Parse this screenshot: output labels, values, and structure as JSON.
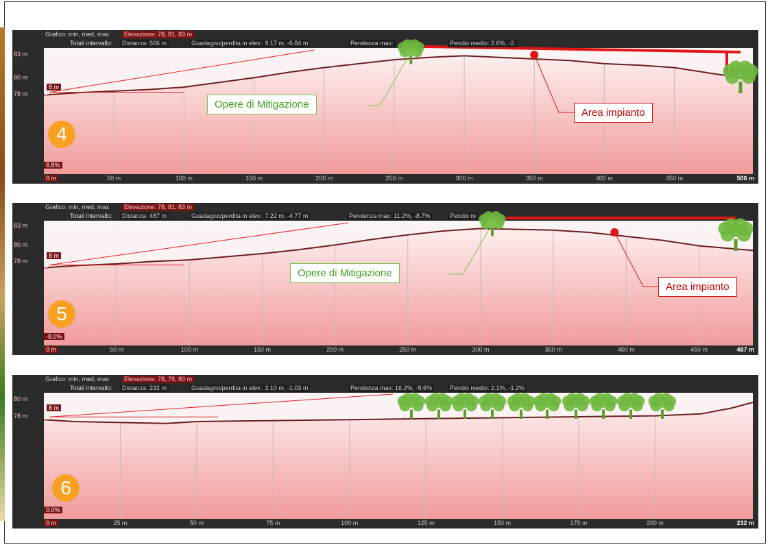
{
  "colors": {
    "panel_bg": "#2b2b2b",
    "profile_line": "#6b1e1e",
    "fill_top": "#fff4f4",
    "fill_bottom": "#f19b9b",
    "green": "#7bc24a",
    "red": "#e01515",
    "badge": "#f7a021"
  },
  "header": {
    "chart_label": "Grafico: min, med, max",
    "totals_label": "Totali intervallo:"
  },
  "charts": [
    {
      "badge": "4",
      "elevation": "Elevazione: 78, 81, 83 m",
      "distance": "Distanza: 506 m",
      "gain_loss": "Guadagno/perdita in elev.: 9.17 m, -6.84 m",
      "slope_max": "Pendenza max:",
      "slope_mean": "Pendio medio: 2.6%, -2.",
      "y_ticks": [
        "83 m",
        "80 m",
        "78 m"
      ],
      "x_ticks": [
        "50 m",
        "100 m",
        "150 m",
        "200 m",
        "250 m",
        "300 m",
        "350 m",
        "400 m",
        "450 m"
      ],
      "x_start": "0 m",
      "x_end": "506 m",
      "cursor_slope": "6.8%",
      "cursor_elev": "8 m",
      "green_label": "Opere di Mitigazione",
      "red_label": "Area impianto",
      "trees_icon": "tree-icon"
    },
    {
      "badge": "5",
      "elevation": "Elevazione: 78, 81, 83 m",
      "distance": "Distanza: 487 m",
      "gain_loss": "Guadagno/perdita in elev.: 7.22 m, -4.77 m",
      "slope_max": "Pendenza max: 11.2%, -8.7%",
      "slope_mean": "Pendio m",
      "y_ticks": [
        "83 m",
        "80 m",
        "78 m"
      ],
      "x_ticks": [
        "50 m",
        "100 m",
        "150 m",
        "200 m",
        "250 m",
        "300 m",
        "350 m",
        "400 m",
        "450 m"
      ],
      "x_start": "0 m",
      "x_end": "487 m",
      "cursor_slope": "-8.0%",
      "cursor_elev": "8 m",
      "green_label": "Opere di Mitigazione",
      "red_label": "Area impianto",
      "trees_icon": "tree-icon"
    },
    {
      "badge": "6",
      "elevation": "Elevazione: 78, 78, 80 m",
      "distance": "Distanza: 232 m",
      "gain_loss": "Guadagno/perdita in elev.: 3.10 m, -1.03 m",
      "slope_max": "Pendenza max: 16.2%, -9.6%",
      "slope_mean": "Pendio medio: 2.1%, -1.2%",
      "y_ticks": [
        "80 m",
        "78 m"
      ],
      "x_ticks": [
        "25 m",
        "50 m",
        "75 m",
        "100 m",
        "125 m",
        "150 m",
        "175 m",
        "200 m"
      ],
      "x_start": "0 m",
      "x_end": "232 m",
      "cursor_slope": "0.0%",
      "cursor_elev": "8 m",
      "trees_icon": "tree-icon"
    }
  ],
  "chart_data": [
    {
      "type": "area",
      "xlabel": "",
      "ylabel": "",
      "x_unit": "m",
      "y_unit": "m",
      "xlim": [
        0,
        506
      ],
      "ylim": [
        77,
        84
      ],
      "x": [
        0,
        25,
        50,
        75,
        100,
        125,
        150,
        175,
        200,
        225,
        250,
        275,
        300,
        325,
        350,
        375,
        400,
        425,
        450,
        475,
        506
      ],
      "y": [
        78.0,
        78.3,
        78.5,
        78.7,
        79.0,
        79.6,
        80.2,
        80.9,
        81.5,
        82.0,
        82.5,
        82.8,
        83.0,
        82.8,
        82.6,
        82.4,
        82.0,
        81.8,
        81.5,
        80.8,
        80.0
      ]
    },
    {
      "type": "area",
      "xlabel": "",
      "ylabel": "",
      "x_unit": "m",
      "y_unit": "m",
      "xlim": [
        0,
        487
      ],
      "ylim": [
        77,
        84
      ],
      "x": [
        0,
        25,
        50,
        75,
        100,
        125,
        150,
        175,
        200,
        225,
        250,
        275,
        300,
        325,
        350,
        375,
        400,
        425,
        450,
        487
      ],
      "y": [
        78.0,
        78.3,
        78.5,
        78.8,
        79.0,
        79.4,
        79.8,
        80.3,
        80.9,
        81.6,
        82.2,
        82.7,
        83.0,
        82.9,
        82.8,
        82.5,
        82.0,
        81.5,
        80.8,
        80.2
      ]
    },
    {
      "type": "area",
      "xlabel": "",
      "ylabel": "",
      "x_unit": "m",
      "y_unit": "m",
      "xlim": [
        0,
        232
      ],
      "ylim": [
        77,
        81
      ],
      "x": [
        0,
        10,
        25,
        40,
        50,
        75,
        100,
        125,
        150,
        175,
        200,
        215,
        225,
        232
      ],
      "y": [
        78.2,
        78.0,
        77.9,
        77.8,
        78.0,
        78.1,
        78.2,
        78.3,
        78.4,
        78.5,
        78.6,
        78.8,
        79.4,
        80.0
      ]
    }
  ]
}
